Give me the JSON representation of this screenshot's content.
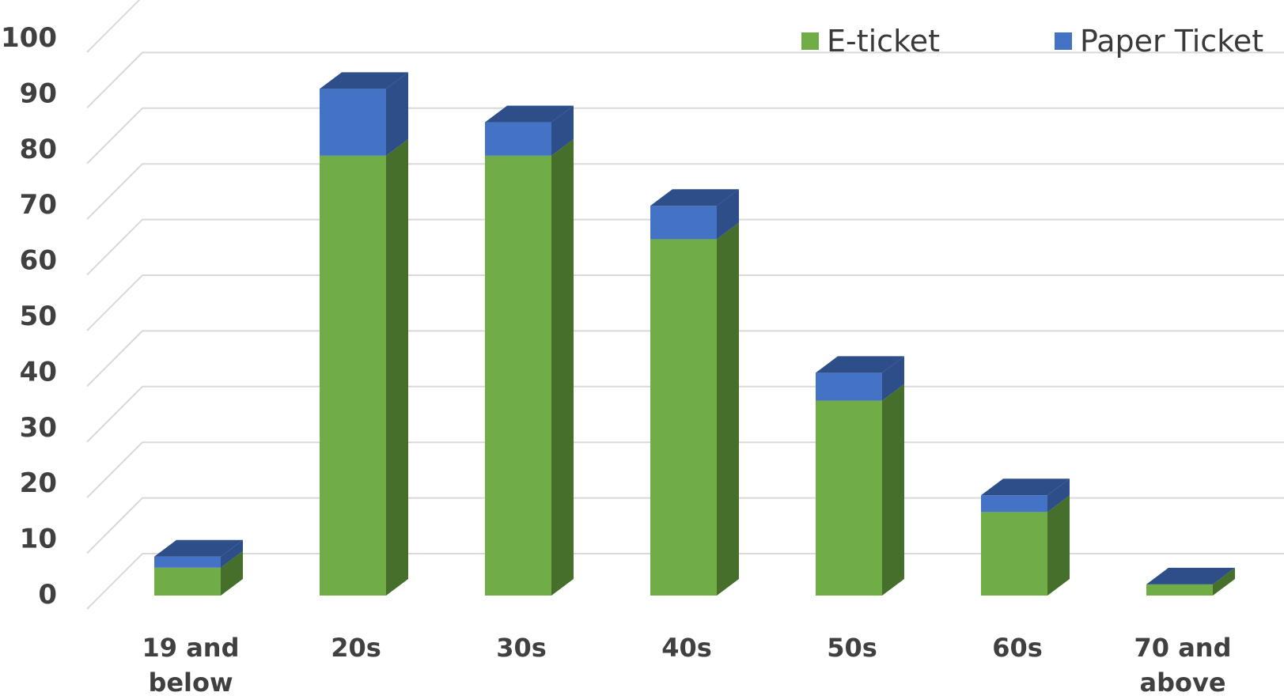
{
  "colors": {
    "eticket": "#70ad47",
    "eticket_side": "#466f2b",
    "paper": "#4472c4",
    "paper_dark": "#2e4e8a",
    "grid": "#d9d9d9",
    "tick_text": "#404040"
  },
  "chart_data": {
    "type": "bar",
    "stacked": true,
    "three_d": true,
    "title": "",
    "xlabel": "",
    "ylabel": "",
    "ylim": [
      0,
      100
    ],
    "yticks": [
      0,
      10,
      20,
      30,
      40,
      50,
      60,
      70,
      80,
      90,
      100
    ],
    "grid": true,
    "legend_position": "top-right",
    "categories": [
      [
        "19 and",
        "below"
      ],
      [
        "20s"
      ],
      [
        "30s"
      ],
      [
        "40s"
      ],
      [
        "50s"
      ],
      [
        "60s"
      ],
      [
        "70 and",
        "above"
      ]
    ],
    "series": [
      {
        "name": "E-ticket",
        "values": [
          5,
          79,
          79,
          64,
          35,
          15,
          2
        ]
      },
      {
        "name": "Paper Ticket",
        "values": [
          2,
          12,
          6,
          6,
          5,
          3,
          0
        ]
      }
    ]
  }
}
